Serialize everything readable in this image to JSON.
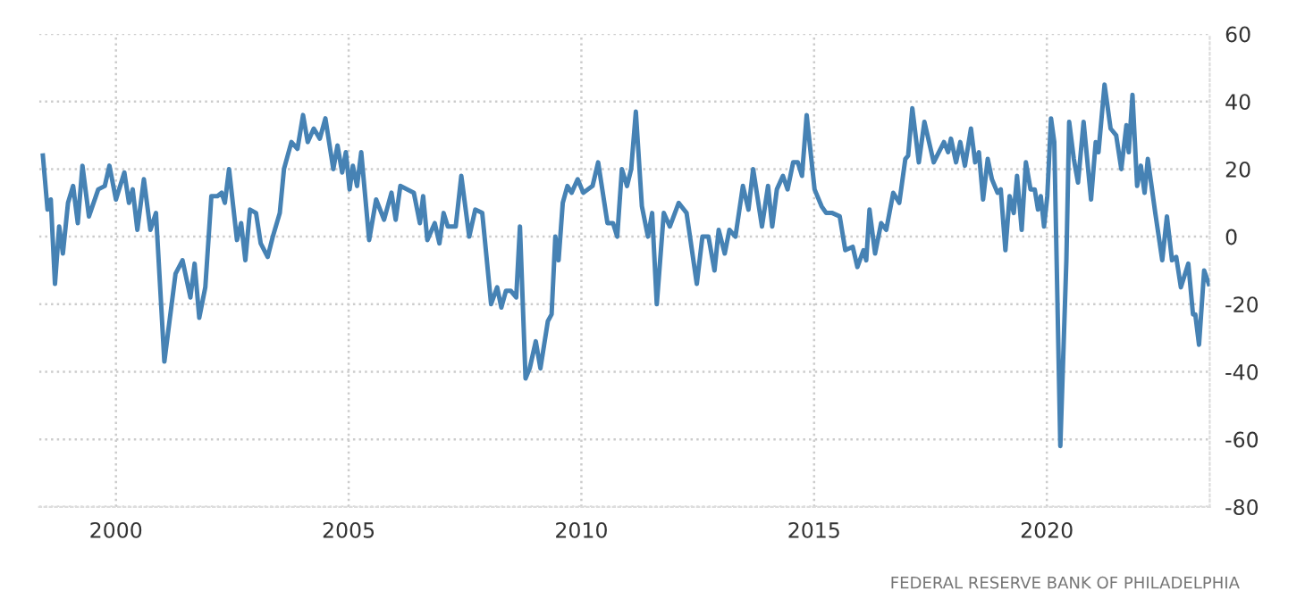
{
  "chart_data": {
    "type": "line",
    "x": [
      1998.43,
      1998.53,
      1998.6,
      1998.69,
      1998.78,
      1998.86,
      1998.97,
      1999.08,
      1999.18,
      1999.28,
      1999.42,
      1999.62,
      1999.76,
      1999.86,
      2000.0,
      2000.18,
      2000.28,
      2000.36,
      2000.46,
      2000.6,
      2000.74,
      2000.86,
      2001.04,
      2001.28,
      2001.43,
      2001.6,
      2001.69,
      2001.79,
      2001.92,
      2002.05,
      2002.18,
      2002.27,
      2002.34,
      2002.43,
      2002.6,
      2002.69,
      2002.78,
      2002.88,
      2003.01,
      2003.11,
      2003.26,
      2003.37,
      2003.52,
      2003.61,
      2003.77,
      2003.9,
      2004.02,
      2004.12,
      2004.25,
      2004.38,
      2004.5,
      2004.67,
      2004.76,
      2004.86,
      2004.94,
      2005.02,
      2005.09,
      2005.18,
      2005.27,
      2005.44,
      2005.59,
      2005.76,
      2005.92,
      2006.01,
      2006.11,
      2006.4,
      2006.53,
      2006.6,
      2006.69,
      2006.85,
      2006.95,
      2007.04,
      2007.13,
      2007.3,
      2007.42,
      2007.59,
      2007.72,
      2007.87,
      2008.06,
      2008.19,
      2008.28,
      2008.38,
      2008.48,
      2008.6,
      2008.68,
      2008.8,
      2008.89,
      2009.02,
      2009.12,
      2009.28,
      2009.36,
      2009.44,
      2009.51,
      2009.6,
      2009.7,
      2009.79,
      2009.92,
      2010.04,
      2010.24,
      2010.36,
      2010.56,
      2010.68,
      2010.77,
      2010.87,
      2010.98,
      2011.07,
      2011.17,
      2011.3,
      2011.43,
      2011.52,
      2011.62,
      2011.77,
      2011.9,
      2012.09,
      2012.26,
      2012.48,
      2012.6,
      2012.73,
      2012.86,
      2012.95,
      2013.08,
      2013.18,
      2013.31,
      2013.47,
      2013.59,
      2013.69,
      2013.88,
      2014.01,
      2014.1,
      2014.2,
      2014.33,
      2014.43,
      2014.55,
      2014.65,
      2014.74,
      2014.84,
      2015.01,
      2015.16,
      2015.26,
      2015.39,
      2015.55,
      2015.67,
      2015.83,
      2015.93,
      2016.06,
      2016.12,
      2016.19,
      2016.31,
      2016.44,
      2016.55,
      2016.7,
      2016.83,
      2016.96,
      2017.02,
      2017.11,
      2017.25,
      2017.37,
      2017.57,
      2017.79,
      2017.88,
      2017.94,
      2018.05,
      2018.14,
      2018.24,
      2018.37,
      2018.46,
      2018.54,
      2018.63,
      2018.73,
      2018.82,
      2018.94,
      2019.01,
      2019.11,
      2019.2,
      2019.29,
      2019.36,
      2019.46,
      2019.55,
      2019.65,
      2019.74,
      2019.81,
      2019.87,
      2019.94,
      2020.01,
      2020.09,
      2020.16,
      2020.29,
      2020.42,
      2020.48,
      2020.58,
      2020.67,
      2020.79,
      2020.95,
      2021.05,
      2021.11,
      2021.24,
      2021.37,
      2021.49,
      2021.6,
      2021.71,
      2021.76,
      2021.84,
      2021.94,
      2022.02,
      2022.1,
      2022.17,
      2022.33,
      2022.48,
      2022.58,
      2022.69,
      2022.78,
      2022.88,
      2023.04,
      2023.14,
      2023.19,
      2023.27,
      2023.38,
      2023.48
    ],
    "values": [
      24,
      8,
      11,
      -14,
      3,
      -5,
      10,
      15,
      4,
      21,
      6,
      14,
      15,
      21,
      11,
      19,
      10,
      14,
      2,
      17,
      2,
      7,
      -37,
      -11,
      -7,
      -18,
      -8,
      -24,
      -15,
      12,
      12,
      13,
      10,
      20,
      -1,
      4,
      -7,
      8,
      7,
      -2,
      -6,
      0,
      7,
      20,
      28,
      26,
      36,
      28,
      32,
      29,
      35,
      20,
      27,
      19,
      25,
      14,
      21,
      15,
      25,
      -1,
      11,
      5,
      13,
      5,
      15,
      13,
      4,
      12,
      -1,
      4,
      -2,
      7,
      3,
      3,
      18,
      0,
      8,
      7,
      -20,
      -15,
      -21,
      -16,
      -16,
      -18,
      3,
      -42,
      -39,
      -31,
      -39,
      -25,
      -23,
      0,
      -7,
      10,
      15,
      13,
      17,
      13,
      15,
      22,
      4,
      4,
      0,
      20,
      15,
      20,
      37,
      9,
      0,
      7,
      -20,
      7,
      3,
      10,
      7,
      -14,
      0,
      0,
      -10,
      2,
      -5,
      2,
      0,
      15,
      8,
      20,
      3,
      15,
      3,
      14,
      18,
      14,
      22,
      22,
      18,
      36,
      14,
      9,
      7,
      7,
      6,
      -4,
      -3,
      -9,
      -4,
      -7,
      8,
      -5,
      4,
      2,
      13,
      10,
      23,
      24,
      38,
      22,
      34,
      22,
      28,
      25,
      29,
      22,
      28,
      21,
      32,
      22,
      25,
      11,
      23,
      17,
      13,
      14,
      -4,
      12,
      7,
      18,
      2,
      22,
      14,
      14,
      8,
      12,
      3,
      12,
      35,
      28,
      -62,
      -7,
      34,
      23,
      16,
      34,
      11,
      28,
      25,
      45,
      32,
      30,
      20,
      33,
      25,
      42,
      15,
      21,
      13,
      23,
      7,
      -7,
      6,
      -7,
      -6,
      -15,
      -8,
      -23,
      -23,
      -32,
      -10,
      -14
    ],
    "color": "#4682b4",
    "xlim": [
      1998.35,
      2023.5
    ],
    "xticks": [
      2000,
      2005,
      2010,
      2015,
      2020
    ],
    "ylim": [
      -80,
      60
    ],
    "yticks": [
      -80,
      -60,
      -40,
      -20,
      0,
      20,
      40,
      60
    ],
    "grid": true,
    "line_style": "solid",
    "marker": "none",
    "legend": false,
    "annotations": [
      "FEDERAL RESERVE BANK OF PHILADELPHIA"
    ]
  }
}
